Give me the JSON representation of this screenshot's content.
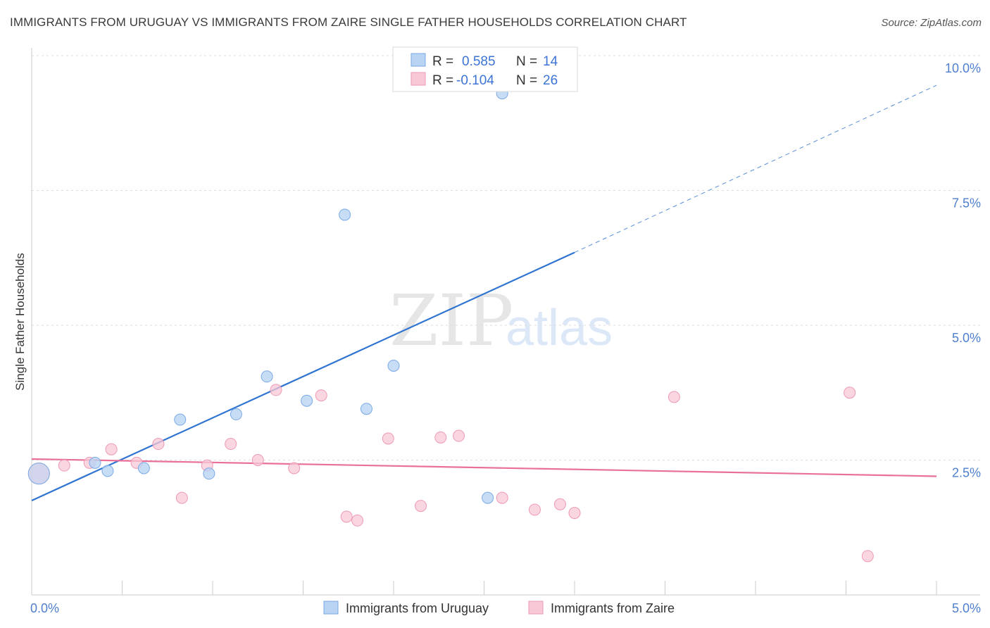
{
  "header": {
    "title": "IMMIGRANTS FROM URUGUAY VS IMMIGRANTS FROM ZAIRE SINGLE FATHER HOUSEHOLDS CORRELATION CHART",
    "source": "Source: ZipAtlas.com"
  },
  "watermark": {
    "zip": "ZIP",
    "atlas": "atlas"
  },
  "legend_box": {
    "rows": [
      {
        "r_label": "R =",
        "r_value": "0.585",
        "n_label": "N =",
        "n_value": "14"
      },
      {
        "r_label": "R =",
        "r_value": "-0.104",
        "n_label": "N =",
        "n_value": "26"
      }
    ]
  },
  "colors": {
    "uruguay_fill": "#b9d3f3",
    "uruguay_stroke": "#7aaae6",
    "uruguay_line": "#2f74d0",
    "zaire_fill": "#f8c8d6",
    "zaire_stroke": "#ee9ab5",
    "zaire_line": "#e8709a"
  },
  "chart_data": {
    "type": "scatter",
    "title": "IMMIGRANTS FROM URUGUAY VS IMMIGRANTS FROM ZAIRE SINGLE FATHER HOUSEHOLDS CORRELATION CHART",
    "xlabel": "",
    "ylabel": "Single Father Households",
    "xlim": [
      0,
      5
    ],
    "ylim": [
      0,
      10
    ],
    "x_tick_labels": [
      "0.0%",
      "5.0%"
    ],
    "y_tick_values": [
      2.5,
      5.0,
      7.5,
      10.0
    ],
    "y_tick_labels": [
      "2.5%",
      "5.0%",
      "7.5%",
      "10.0%"
    ],
    "grid": true,
    "legend_placement": "top-center",
    "series": [
      {
        "name": "Immigrants from Uruguay",
        "points": [
          [
            0.04,
            2.25
          ],
          [
            0.35,
            2.45
          ],
          [
            0.42,
            2.3
          ],
          [
            0.62,
            2.35
          ],
          [
            0.82,
            3.25
          ],
          [
            0.98,
            2.25
          ],
          [
            1.13,
            3.35
          ],
          [
            1.3,
            4.05
          ],
          [
            1.52,
            3.6
          ],
          [
            1.73,
            7.05
          ],
          [
            1.85,
            3.45
          ],
          [
            2.0,
            4.25
          ],
          [
            2.6,
            9.3
          ],
          [
            2.52,
            1.8
          ]
        ],
        "trend": {
          "x_start": 0,
          "y_start": 1.75,
          "x_solid_end": 3.0,
          "y_solid_end": 6.35,
          "x_dash_end": 5.0,
          "y_dash_end": 9.45
        }
      },
      {
        "name": "Immigrants from Zaire",
        "points": [
          [
            0.04,
            2.25
          ],
          [
            0.18,
            2.4
          ],
          [
            0.32,
            2.45
          ],
          [
            0.44,
            2.7
          ],
          [
            0.58,
            2.45
          ],
          [
            0.7,
            2.8
          ],
          [
            0.83,
            1.8
          ],
          [
            0.97,
            2.4
          ],
          [
            1.1,
            2.8
          ],
          [
            1.25,
            2.5
          ],
          [
            1.35,
            3.8
          ],
          [
            1.45,
            2.35
          ],
          [
            1.6,
            3.7
          ],
          [
            1.74,
            1.45
          ],
          [
            1.8,
            1.38
          ],
          [
            1.97,
            2.9
          ],
          [
            2.15,
            1.65
          ],
          [
            2.26,
            2.92
          ],
          [
            2.36,
            2.95
          ],
          [
            2.6,
            1.8
          ],
          [
            2.78,
            1.58
          ],
          [
            2.92,
            1.68
          ],
          [
            3.0,
            1.52
          ],
          [
            3.55,
            3.67
          ],
          [
            4.52,
            3.75
          ],
          [
            4.62,
            0.72
          ]
        ],
        "trend": {
          "x_start": 0,
          "y_start": 2.52,
          "x_end": 5.0,
          "y_end": 2.2
        }
      }
    ]
  }
}
